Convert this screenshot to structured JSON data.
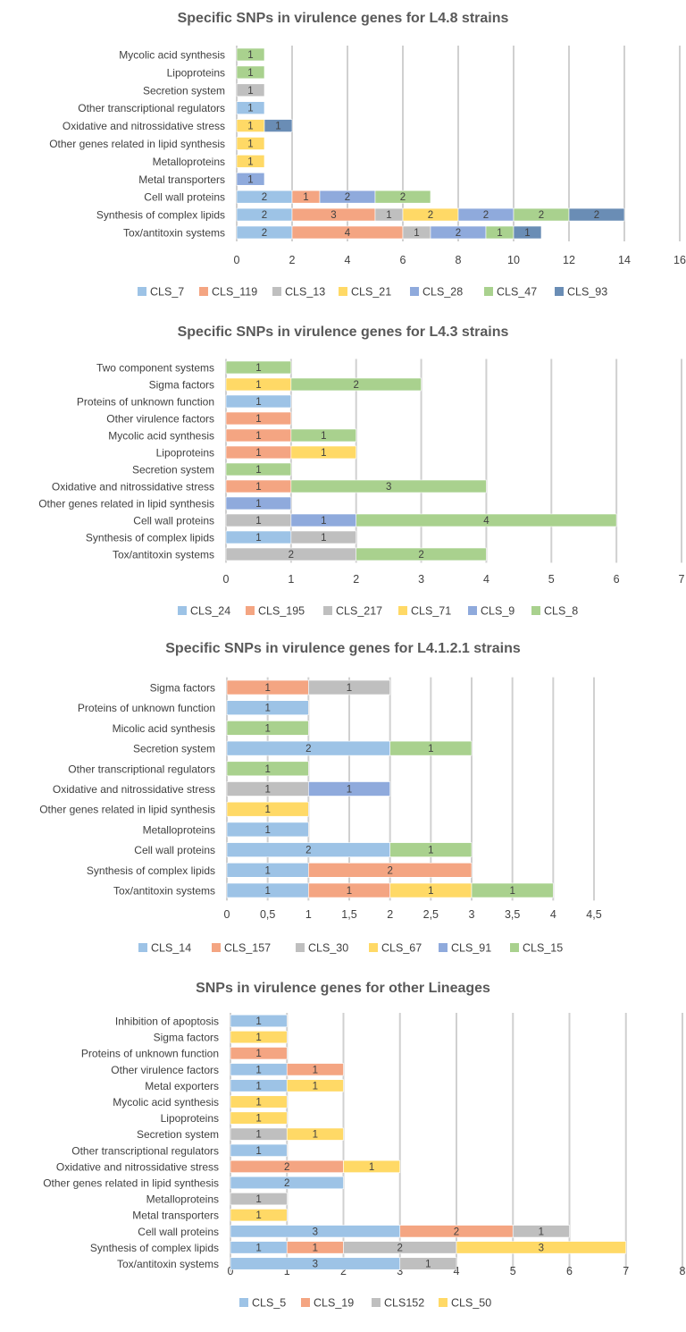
{
  "colors": {
    "blue_light": "#9DC3E6",
    "orange": "#F4A582",
    "gray": "#BFBFBF",
    "yellow": "#FFD966",
    "blue_mid": "#8FAADC",
    "green": "#A9D18E",
    "blue_dark": "#6A8DB5",
    "gridline": "#D0D0D0",
    "text": "#404040",
    "title": "#595959"
  },
  "chart_data": [
    {
      "type": "bar",
      "orientation": "horizontal",
      "stacked": true,
      "title": "Specific SNPs in virulence genes for L4.8 strains",
      "categories": [
        "Mycolic acid synthesis",
        "Lipoproteins",
        "Secretion system",
        "Other transcriptional regulators",
        "Oxidative and nitrossidative stress",
        "Other genes related in lipid synthesis",
        "Metalloproteins",
        "Metal transporters",
        "Cell wall proteins",
        "Synthesis of complex lipids",
        "Tox/antitoxin systems"
      ],
      "xlim": [
        0,
        16
      ],
      "ticks": [
        "0",
        "2",
        "4",
        "6",
        "8",
        "10",
        "12",
        "14",
        "16"
      ],
      "grid": "vertical",
      "legend_position": "bottom",
      "series": [
        {
          "name": "CLS_7",
          "color": "#9DC3E6",
          "values": [
            0,
            0,
            0,
            1,
            0,
            0,
            0,
            0,
            2,
            2,
            2
          ]
        },
        {
          "name": "CLS_119",
          "color": "#F4A582",
          "values": [
            0,
            0,
            0,
            0,
            0,
            0,
            0,
            0,
            1,
            3,
            4
          ]
        },
        {
          "name": "CLS_13",
          "color": "#BFBFBF",
          "values": [
            0,
            0,
            1,
            0,
            0,
            0,
            0,
            0,
            0,
            1,
            1
          ]
        },
        {
          "name": "CLS_21",
          "color": "#FFD966",
          "values": [
            0,
            0,
            0,
            0,
            1,
            1,
            1,
            0,
            0,
            2,
            0
          ]
        },
        {
          "name": "CLS_28",
          "color": "#8FAADC",
          "values": [
            0,
            0,
            0,
            0,
            0,
            0,
            0,
            1,
            2,
            2,
            2
          ]
        },
        {
          "name": "CLS_47",
          "color": "#A9D18E",
          "values": [
            1,
            1,
            0,
            0,
            0,
            0,
            0,
            0,
            2,
            2,
            1
          ]
        },
        {
          "name": "CLS_93",
          "color": "#6A8DB5",
          "values": [
            0,
            0,
            0,
            0,
            1,
            0,
            0,
            0,
            0,
            2,
            1
          ]
        }
      ]
    },
    {
      "type": "bar",
      "orientation": "horizontal",
      "stacked": true,
      "title": "Specific SNPs in virulence genes for L4.3 strains",
      "categories": [
        "Two component systems",
        "Sigma factors",
        "Proteins of unknown function",
        "Other virulence factors",
        "Mycolic acid synthesis",
        "Lipoproteins",
        "Secretion system",
        "Oxidative and nitrossidative stress",
        "Other genes related in lipid synthesis",
        "Cell wall proteins",
        "Synthesis of complex lipids",
        "Tox/antitoxin systems"
      ],
      "xlim": [
        0,
        7
      ],
      "ticks": [
        "0",
        "1",
        "2",
        "3",
        "4",
        "5",
        "6",
        "7"
      ],
      "grid": "vertical",
      "legend_position": "bottom",
      "series": [
        {
          "name": "CLS_24",
          "color": "#9DC3E6",
          "values": [
            0,
            0,
            1,
            0,
            0,
            0,
            0,
            0,
            0,
            0,
            1,
            0
          ]
        },
        {
          "name": "CLS_195",
          "color": "#F4A582",
          "values": [
            0,
            0,
            0,
            1,
            1,
            1,
            0,
            1,
            0,
            0,
            0,
            0
          ]
        },
        {
          "name": "CLS_217",
          "color": "#BFBFBF",
          "values": [
            0,
            0,
            0,
            0,
            0,
            0,
            0,
            0,
            0,
            1,
            1,
            2
          ]
        },
        {
          "name": "CLS_71",
          "color": "#FFD966",
          "values": [
            0,
            1,
            0,
            0,
            0,
            1,
            0,
            0,
            0,
            0,
            0,
            0
          ]
        },
        {
          "name": "CLS_9",
          "color": "#8FAADC",
          "values": [
            0,
            0,
            0,
            0,
            0,
            0,
            0,
            0,
            1,
            1,
            0,
            0
          ]
        },
        {
          "name": "CLS_8",
          "color": "#A9D18E",
          "values": [
            1,
            2,
            0,
            0,
            1,
            0,
            1,
            3,
            0,
            4,
            0,
            2
          ]
        }
      ]
    },
    {
      "type": "bar",
      "orientation": "horizontal",
      "stacked": true,
      "title": "Specific SNPs in virulence genes for L4.1.2.1 strains",
      "categories": [
        "Sigma factors",
        "Proteins of unknown function",
        "Micolic acid synthesis",
        "Secretion system",
        "Other transcriptional regulators",
        "Oxidative and nitrossidative stress",
        "Other genes related in lipid synthesis",
        "Metalloproteins",
        "Cell wall proteins",
        "Synthesis of complex lipids",
        "Tox/antitoxin systems"
      ],
      "xlim": [
        0,
        4.5
      ],
      "ticks": [
        "0",
        "0,5",
        "1",
        "1,5",
        "2",
        "2,5",
        "3",
        "3,5",
        "4",
        "4,5"
      ],
      "grid": "vertical",
      "legend_position": "bottom",
      "series": [
        {
          "name": "CLS_14",
          "color": "#9DC3E6",
          "values": [
            0,
            1,
            0,
            2,
            0,
            0,
            0,
            1,
            2,
            1,
            1
          ]
        },
        {
          "name": "CLS_157",
          "color": "#F4A582",
          "values": [
            1,
            0,
            0,
            0,
            0,
            0,
            0,
            0,
            0,
            2,
            1
          ]
        },
        {
          "name": "CLS_30",
          "color": "#BFBFBF",
          "values": [
            1,
            0,
            0,
            0,
            0,
            1,
            0,
            0,
            0,
            0,
            0
          ]
        },
        {
          "name": "CLS_67",
          "color": "#FFD966",
          "values": [
            0,
            0,
            0,
            0,
            0,
            0,
            1,
            0,
            0,
            0,
            1
          ]
        },
        {
          "name": "CLS_91",
          "color": "#8FAADC",
          "values": [
            0,
            0,
            0,
            0,
            0,
            1,
            0,
            0,
            0,
            0,
            0
          ]
        },
        {
          "name": "CLS_15",
          "color": "#A9D18E",
          "values": [
            0,
            0,
            1,
            1,
            1,
            0,
            0,
            0,
            1,
            0,
            1
          ]
        }
      ]
    },
    {
      "type": "bar",
      "orientation": "horizontal",
      "stacked": true,
      "title": "SNPs in virulence genes for other Lineages",
      "categories": [
        "Inhibition of apoptosis",
        "Sigma factors",
        "Proteins of unknown function",
        "Other virulence factors",
        "Metal exporters",
        "Mycolic acid synthesis",
        "Lipoproteins",
        "Secretion system",
        "Other transcriptional regulators",
        "Oxidative and nitrossidative stress",
        "Other genes related in lipid synthesis",
        "Metalloproteins",
        "Metal transporters",
        "Cell wall proteins",
        "Synthesis of complex lipids",
        "Tox/antitoxin systems"
      ],
      "xlim": [
        0,
        8
      ],
      "ticks": [
        "0",
        "1",
        "2",
        "3",
        "4",
        "5",
        "6",
        "7",
        "8"
      ],
      "grid": "vertical",
      "legend_position": "bottom",
      "series": [
        {
          "name": "CLS_5",
          "color": "#9DC3E6",
          "values": [
            1,
            0,
            0,
            1,
            1,
            0,
            0,
            0,
            1,
            0,
            2,
            0,
            0,
            3,
            1,
            3
          ]
        },
        {
          "name": "CLS_19",
          "color": "#F4A582",
          "values": [
            0,
            0,
            1,
            1,
            0,
            0,
            0,
            0,
            0,
            2,
            0,
            0,
            0,
            2,
            1,
            0
          ]
        },
        {
          "name": "CLS152",
          "color": "#BFBFBF",
          "values": [
            0,
            0,
            0,
            0,
            0,
            0,
            0,
            1,
            0,
            0,
            0,
            1,
            0,
            1,
            2,
            1
          ]
        },
        {
          "name": "CLS_50",
          "color": "#FFD966",
          "values": [
            0,
            1,
            0,
            0,
            1,
            1,
            1,
            1,
            0,
            1,
            0,
            0,
            1,
            0,
            3,
            0
          ]
        }
      ]
    }
  ]
}
